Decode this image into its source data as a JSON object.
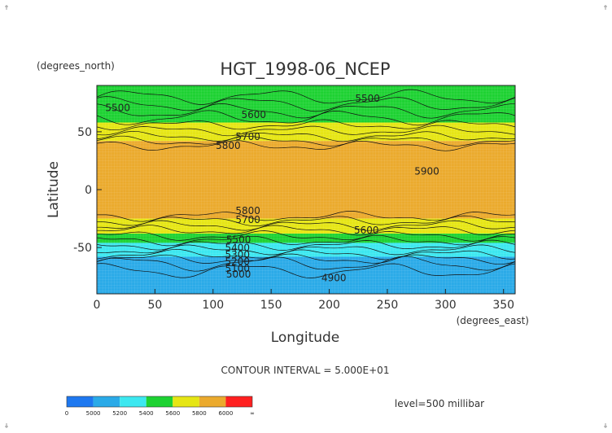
{
  "chart_data": {
    "type": "heatmap",
    "title": "HGT_1998-06_NCEP",
    "xlabel": "Longitude",
    "ylabel": "Latitude",
    "x_unit": "(degrees_east)",
    "y_unit": "(degrees_north)",
    "xlim": [
      0,
      360
    ],
    "ylim": [
      -90,
      90
    ],
    "x_ticks": [
      "0",
      "50",
      "100",
      "150",
      "200",
      "250",
      "300",
      "350"
    ],
    "y_ticks": [
      "50",
      "0",
      "-50"
    ],
    "contour_interval_text": "CONTOUR INTERVAL = 5.000E+01",
    "level_text": "level=500 millibar",
    "grid": false,
    "colorbar": {
      "labels": [
        "0",
        "5000",
        "5200",
        "5400",
        "5600",
        "5800",
        "6000",
        "∞"
      ],
      "colors": [
        "#1e78f0",
        "#2aaae8",
        "#3ce8f0",
        "#1dd232",
        "#e6e614",
        "#ebaa2d",
        "#ff2020"
      ]
    },
    "bands": [
      {
        "lat_from": 90,
        "lat_to": 58,
        "value_range": "5400-5600",
        "color": "#1dd232"
      },
      {
        "lat_from": 58,
        "lat_to": 42,
        "value_range": "5600-5800",
        "color": "#e6e614"
      },
      {
        "lat_from": 42,
        "lat_to": -25,
        "value_range": "5800-6000",
        "color": "#ebaa2d"
      },
      {
        "lat_from": -25,
        "lat_to": -38,
        "value_range": "5600-5800",
        "color": "#e6e614"
      },
      {
        "lat_from": -38,
        "lat_to": -46,
        "value_range": "5400-5600",
        "color": "#1dd232"
      },
      {
        "lat_from": -46,
        "lat_to": -58,
        "value_range": "5200-5400",
        "color": "#3ce8f0"
      },
      {
        "lat_from": -58,
        "lat_to": -90,
        "value_range": "5000-5200",
        "color": "#2aaae8"
      }
    ],
    "contour_labels": [
      {
        "text": "5500",
        "lon": 18,
        "lat": 68
      },
      {
        "text": "5500",
        "lon": 233,
        "lat": 76
      },
      {
        "text": "5600",
        "lon": 135,
        "lat": 62
      },
      {
        "text": "5700",
        "lon": 130,
        "lat": 43
      },
      {
        "text": "5800",
        "lon": 113,
        "lat": 35
      },
      {
        "text": "5900",
        "lon": 284,
        "lat": 13
      },
      {
        "text": "5800",
        "lon": 130,
        "lat": -21
      },
      {
        "text": "5700",
        "lon": 130,
        "lat": -29
      },
      {
        "text": "5600",
        "lon": 232,
        "lat": -38
      },
      {
        "text": "5500",
        "lon": 122,
        "lat": -46
      },
      {
        "text": "5400",
        "lon": 121,
        "lat": -53
      },
      {
        "text": "5300",
        "lon": 121,
        "lat": -59
      },
      {
        "text": "5200",
        "lon": 121,
        "lat": -65
      },
      {
        "text": "5100",
        "lon": 121,
        "lat": -71
      },
      {
        "text": "5000",
        "lon": 122,
        "lat": -76
      },
      {
        "text": "4900",
        "lon": 204,
        "lat": -79
      }
    ]
  }
}
